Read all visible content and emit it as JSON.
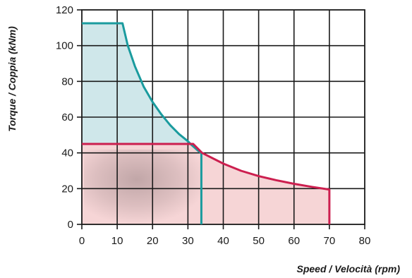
{
  "chart_data": {
    "type": "area",
    "title": "",
    "xlabel": "Speed / Velocità (rpm)",
    "ylabel": "Torque / Coppia (kNm)",
    "xlim": [
      0,
      80
    ],
    "ylim": [
      0,
      120
    ],
    "xticks": [
      "0",
      "10",
      "20",
      "30",
      "40",
      "50",
      "60",
      "70",
      "80"
    ],
    "yticks": [
      "0",
      "20",
      "40",
      "60",
      "80",
      "100",
      "120"
    ],
    "grid": true,
    "legend": "none",
    "series": [
      {
        "color": "#1a9b9e",
        "fill": "#cfe7ea",
        "x": [
          0,
          11.5,
          13,
          15,
          17.5,
          20,
          22.5,
          25,
          27.5,
          30,
          31,
          33,
          33.8,
          33.8
        ],
        "y": [
          112.5,
          112.5,
          100,
          88.5,
          77,
          68.5,
          61.5,
          55.5,
          50.5,
          46.5,
          44.5,
          41,
          40,
          0
        ]
      },
      {
        "color": "#cc1f4f",
        "fill": "#f6d5d6",
        "x": [
          0,
          31.5,
          34,
          40,
          45,
          50,
          55,
          60,
          65,
          70,
          70
        ],
        "y": [
          45,
          45,
          40,
          34,
          30,
          27,
          24.7,
          22.7,
          21,
          19.5,
          0
        ]
      }
    ]
  }
}
